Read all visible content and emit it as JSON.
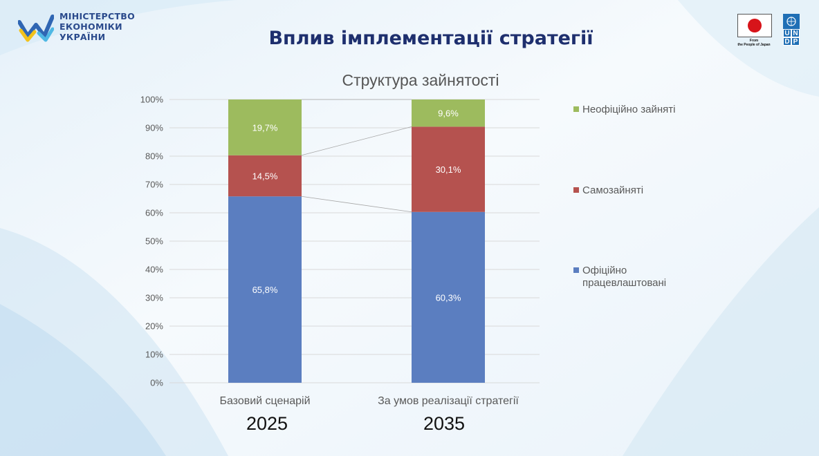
{
  "header": {
    "ministry_lines": [
      "МІНІСТЕРСТВО",
      "ЕКОНОМІКИ",
      "УКРАЇНИ"
    ],
    "slide_title": "Вплив імплементації стратегії",
    "japan_caption_line1": "From",
    "japan_caption_line2": "the People of Japan",
    "undp_letters": [
      "U",
      "N",
      "D",
      "P"
    ]
  },
  "years": [
    "2025",
    "2035"
  ],
  "colors": {
    "official": "#5b7ec0",
    "self_employed": "#b5524f",
    "informal": "#9dbb5e",
    "title_blue": "#1e2f6e"
  },
  "chart_data": {
    "type": "bar",
    "stacked": true,
    "title": "Структура зайнятості",
    "categories": [
      "Базовий сценарій",
      "За умов реалізації стратегії"
    ],
    "series": [
      {
        "name": "Офіційно працевлаштовані",
        "values": [
          65.8,
          60.3
        ],
        "labels": [
          "65,8%",
          "60,3%"
        ],
        "color": "#5b7ec0"
      },
      {
        "name": "Самозайняті",
        "values": [
          14.5,
          30.1
        ],
        "labels": [
          "14,5%",
          "30,1%"
        ],
        "color": "#b5524f"
      },
      {
        "name": "Неофіційно зайняті",
        "values": [
          19.7,
          9.6
        ],
        "labels": [
          "19,7%",
          "9,6%"
        ],
        "color": "#9dbb5e"
      }
    ],
    "legend_display": [
      {
        "series": "Неофіційно зайняті",
        "lines": [
          "Неофіційно зайняті"
        ]
      },
      {
        "series": "Самозайняті",
        "lines": [
          "Самозайняті"
        ]
      },
      {
        "series": "Офіційно працевлаштовані",
        "lines": [
          "Офіційно",
          "працевлаштовані"
        ]
      }
    ],
    "ylim": [
      0,
      100
    ],
    "yticks": [
      "0%",
      "10%",
      "20%",
      "30%",
      "40%",
      "50%",
      "60%",
      "70%",
      "80%",
      "90%",
      "100%"
    ],
    "xlabel": "",
    "ylabel": "",
    "grid": true,
    "legend_position": "right",
    "series_lines": true
  }
}
